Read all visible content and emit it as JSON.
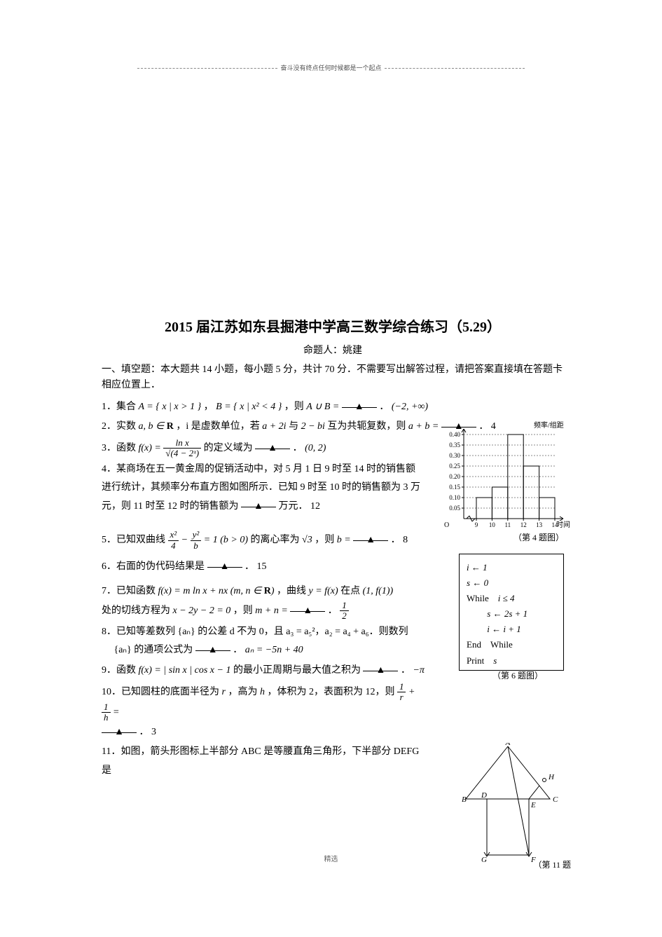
{
  "header_motto": "奋斗没有终点任何时候都是一个起点",
  "title": "2015 届江苏如东县掘港中学高三数学综合练习（5.29）",
  "author_line": "命题人：姚建",
  "instructions": "一、填空题：本大题共 14 小题，每小题 5 分，共计 70 分．不需要写出解答过程，请把答案直接填在答题卡相应位置上．",
  "blank_mark": "▲",
  "questions": {
    "q1": {
      "pre": "1．集合 ",
      "setA": "A = { x | x > 1 }",
      "mid1": "，",
      "setB": "B = { x | x² < 4 }",
      "mid2": "，则 ",
      "expr": "A ∪ B =",
      "post": "．",
      "ans": "(−2, +∞)"
    },
    "q2": {
      "pre": "2．实数 ",
      "vars": "a, b ∈ R",
      "mid1": "，i 是虚数单位，若 ",
      "c1": "a + 2i",
      "mid2": " 与 ",
      "c2": "2 − bi",
      "mid3": " 互为共轭复数，则 ",
      "expr": "a + b =",
      "post": "． 4"
    },
    "q3": {
      "pre": "3．函数 ",
      "fx": "f(x) =",
      "frac_n": "ln x",
      "frac_d": "√(4 − 2ˣ)",
      "mid": " 的定义域为 ",
      "post": "．",
      "ans": "(0, 2)"
    },
    "q4": {
      "text": "4．某商场在五一黄金周的促销活动中，对 5 月 1 日 9 时至 14 时的销售额进行统计，其频率分布直方图如图所示．已知 9 时至 10 时的销售额为 3 万元，则 11 时至 12 时的销售额为 ",
      "post": " 万元． 12"
    },
    "q5": {
      "pre": "5．已知双曲线 ",
      "frac1_n": "x²",
      "frac1_d": "4",
      "minus": " − ",
      "frac2_n": "y²",
      "frac2_d": "b",
      "eq": " = 1 (b > 0)",
      "mid": " 的离心率为 ",
      "ecc": "√3",
      "then": "，则 ",
      "bexpr": "b =",
      "post": "． 8"
    },
    "q6": {
      "pre": "6．右面的伪代码结果是 ",
      "post": "． 15"
    },
    "q7": {
      "pre": "7．已知函数 ",
      "fx": "f(x) = m ln x + nx",
      "paren": " (m, n ∈ R)",
      "mid1": "，曲线 ",
      "curve": "y = f(x)",
      "mid2": " 在点 ",
      "pt": "(1, f(1))",
      "line2a": "处的切线方程为 ",
      "tang": "x − 2y − 2 = 0",
      "then": "，则 ",
      "expr": "m + n =",
      "post": "．",
      "ans_n": "1",
      "ans_d": "2"
    },
    "q8": {
      "line1": "8．已知等差数列 {aₙ} 的公差 d 不为 0，且 a₃ = a₅²，a₂ = a₄ + a₆．则数列",
      "line2pre": "　 {aₙ} 的通项公式为 ",
      "line2post": "．",
      "ans": "aₙ = −5n + 40"
    },
    "q9": {
      "pre": "9．函数 ",
      "fx": "f(x) = | sin x | cos x − 1",
      "mid": " 的最小正周期与最大值之积为 ",
      "post": "．",
      "ans": "−π"
    },
    "q10": {
      "pre": "10．已知圆柱的底面半径为 ",
      "r": "r",
      "mid1": "，高为 ",
      "h": "h",
      "mid2": "，体积为 2，表面积为 12，则 ",
      "f1n": "1",
      "f1d": "r",
      "plus": " + ",
      "f2n": "1",
      "f2d": "h",
      "eq": " =",
      "line2post": "． 3"
    },
    "q11": {
      "text": "11．如图，箭头形图标上半部分 ABC 是等腰直角三角形，下半部分 DEFG 是"
    }
  },
  "histogram": {
    "y_label": "频率/组距",
    "x_label": "时间",
    "y_ticks": [
      "0.05",
      "0.10",
      "0.15",
      "0.20",
      "0.25",
      "0.30",
      "0.35",
      "0.40"
    ],
    "x_ticks": [
      "9",
      "10",
      "11",
      "12",
      "13",
      "14"
    ],
    "bars": [
      0.1,
      0.15,
      0.4,
      0.25,
      0.1
    ],
    "y_max": 0.4,
    "axis_color": "#000000",
    "grid_color": "#888888",
    "caption": "（第 4 题图）"
  },
  "pseudocode": {
    "l1a": "i",
    "l1b": " ← 1",
    "l2a": "s",
    "l2b": " ← 0",
    "l3": "While    i ≤ 4",
    "l4": "         s ← 2s + 1",
    "l5": "         i ← i + 1",
    "l6": "End    While",
    "l7": "Print    s",
    "caption": "（第 6 题图）"
  },
  "arrow_fig": {
    "labels": {
      "A": "A",
      "B": "B",
      "C": "C",
      "D": "D",
      "E": "E",
      "F": "F",
      "G": "G",
      "H": "H"
    },
    "caption": "（第 11 题"
  },
  "footer": "精选"
}
